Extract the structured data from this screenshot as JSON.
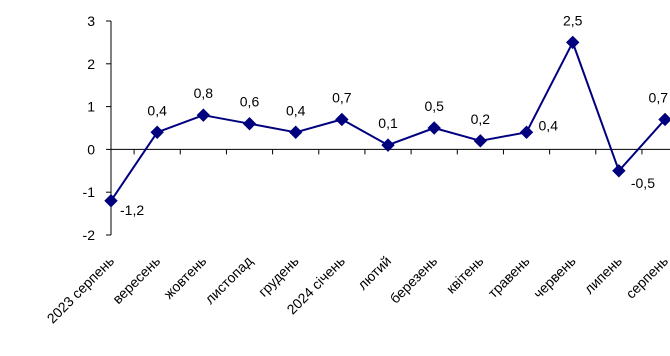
{
  "chart_data": {
    "type": "line",
    "categories": [
      "2023 серпень",
      "вересень",
      "жовтень",
      "листопад",
      "грудень",
      "2024 січень",
      "лютий",
      "березень",
      "квітень",
      "травень",
      "червень",
      "липень",
      "серпень"
    ],
    "series": [
      {
        "values": [
          -1.2,
          0.4,
          0.8,
          0.6,
          0.4,
          0.7,
          0.1,
          0.5,
          0.2,
          0.4,
          2.5,
          -0.5,
          0.7
        ],
        "labels": [
          "-1,2",
          "0,4",
          "0,8",
          "0,6",
          "0,4",
          "0,7",
          "0,1",
          "0,5",
          "0,2",
          "0,4",
          "2,5",
          "-0,5",
          "0,7"
        ]
      }
    ],
    "y_ticks": [
      3,
      2,
      1,
      0,
      -1,
      -2
    ],
    "y_tick_labels": [
      "3",
      "2",
      "1",
      "0",
      "-1",
      "-2"
    ],
    "ylim": [
      -2,
      3
    ],
    "grid": false,
    "legend": "none",
    "line_color": "#00007f",
    "marker": "diamond",
    "title": "",
    "xlabel": "",
    "ylabel": ""
  }
}
